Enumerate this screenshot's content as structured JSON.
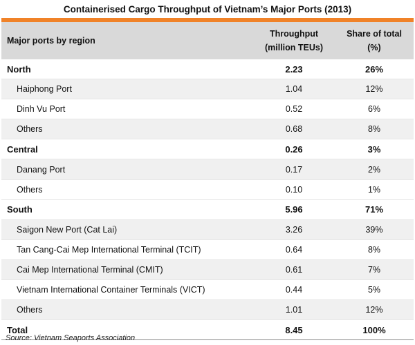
{
  "chart_data": {
    "type": "table",
    "title": "Containerised Cargo Throughput of Vietnam’s Major Ports (2013)",
    "columns": [
      "Major ports by region",
      "Throughput (million TEUs)",
      "Share of total (%)"
    ],
    "header": {
      "col1": "Major ports by region",
      "col2_line1": "Throughput",
      "col2_line2": "(million TEUs)",
      "col3_line1": "Share of total",
      "col3_line2": "(%)"
    },
    "rows": [
      {
        "name": "North",
        "throughput": "2.23",
        "share": "26%",
        "kind": "region"
      },
      {
        "name": "Haiphong Port",
        "throughput": "1.04",
        "share": "12%",
        "kind": "sub"
      },
      {
        "name": "Dinh Vu Port",
        "throughput": "0.52",
        "share": "6%",
        "kind": "sub"
      },
      {
        "name": "Others",
        "throughput": "0.68",
        "share": "8%",
        "kind": "sub"
      },
      {
        "name": "Central",
        "throughput": "0.26",
        "share": "3%",
        "kind": "region"
      },
      {
        "name": "Danang Port",
        "throughput": "0.17",
        "share": "2%",
        "kind": "sub"
      },
      {
        "name": "Others",
        "throughput": "0.10",
        "share": "1%",
        "kind": "sub"
      },
      {
        "name": "South",
        "throughput": "5.96",
        "share": "71%",
        "kind": "region"
      },
      {
        "name": "Saigon New Port  (Cat Lai)",
        "throughput": "3.26",
        "share": "39%",
        "kind": "sub"
      },
      {
        "name": "Tan Cang-Cai Mep International Terminal (TCIT)",
        "throughput": "0.64",
        "share": "8%",
        "kind": "sub"
      },
      {
        "name": "Cai Mep International Terminal (CMIT)",
        "throughput": "0.61",
        "share": "7%",
        "kind": "sub"
      },
      {
        "name": "Vietnam International Container Terminals (VICT)",
        "throughput": "0.44",
        "share": "5%",
        "kind": "sub"
      },
      {
        "name": "Others",
        "throughput": "1.01",
        "share": "12%",
        "kind": "sub"
      },
      {
        "name": "Total",
        "throughput": "8.45",
        "share": "100%",
        "kind": "total"
      }
    ],
    "source": "Source: Vietnam  Seaports Association"
  },
  "colors": {
    "accent_rule": "#f08228",
    "header_bg": "#d9d9d9",
    "alt_row_bg": "#f0f0f0"
  }
}
